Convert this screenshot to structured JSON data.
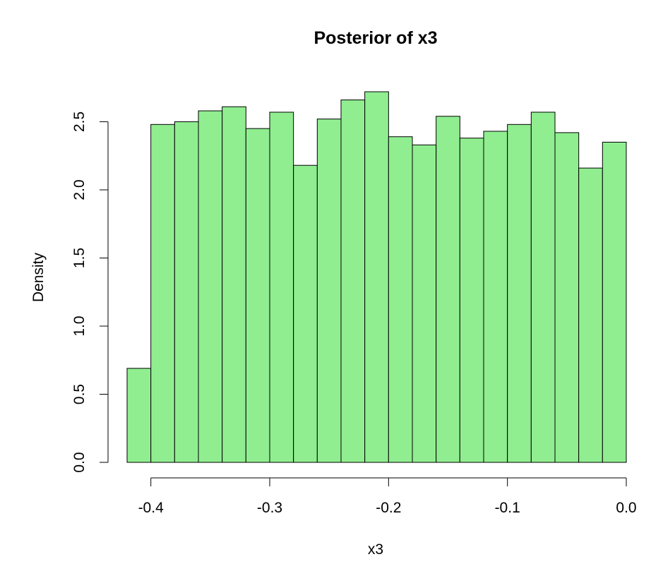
{
  "chart_data": {
    "type": "bar",
    "title": "Posterior of x3",
    "xlabel": "x3",
    "ylabel": "Density",
    "bin_edges": [
      -0.42,
      -0.4,
      -0.38,
      -0.36,
      -0.34,
      -0.32,
      -0.3,
      -0.28,
      -0.26,
      -0.24,
      -0.22,
      -0.2,
      -0.18,
      -0.16,
      -0.14,
      -0.12,
      -0.1,
      -0.08,
      -0.06,
      -0.04,
      -0.02,
      0.0
    ],
    "values": [
      0.69,
      2.48,
      2.5,
      2.58,
      2.61,
      2.45,
      2.57,
      2.18,
      2.52,
      2.66,
      2.72,
      2.39,
      2.33,
      2.54,
      2.38,
      2.43,
      2.48,
      2.57,
      2.42,
      2.16,
      2.35
    ],
    "xlim": [
      -0.42,
      0.0
    ],
    "ylim": [
      0,
      2.72
    ],
    "x_ticks": [
      -0.4,
      -0.3,
      -0.2,
      -0.1,
      0.0
    ],
    "x_tick_labels": [
      "-0.4",
      "-0.3",
      "-0.2",
      "-0.1",
      "0.0"
    ],
    "y_ticks": [
      0.0,
      0.5,
      1.0,
      1.5,
      2.0,
      2.5
    ],
    "y_tick_labels": [
      "0.0",
      "0.5",
      "1.0",
      "1.5",
      "2.0",
      "2.5"
    ],
    "bar_fill": "#90ee90",
    "bar_stroke": "#000000",
    "grid": false,
    "legend": "none"
  }
}
